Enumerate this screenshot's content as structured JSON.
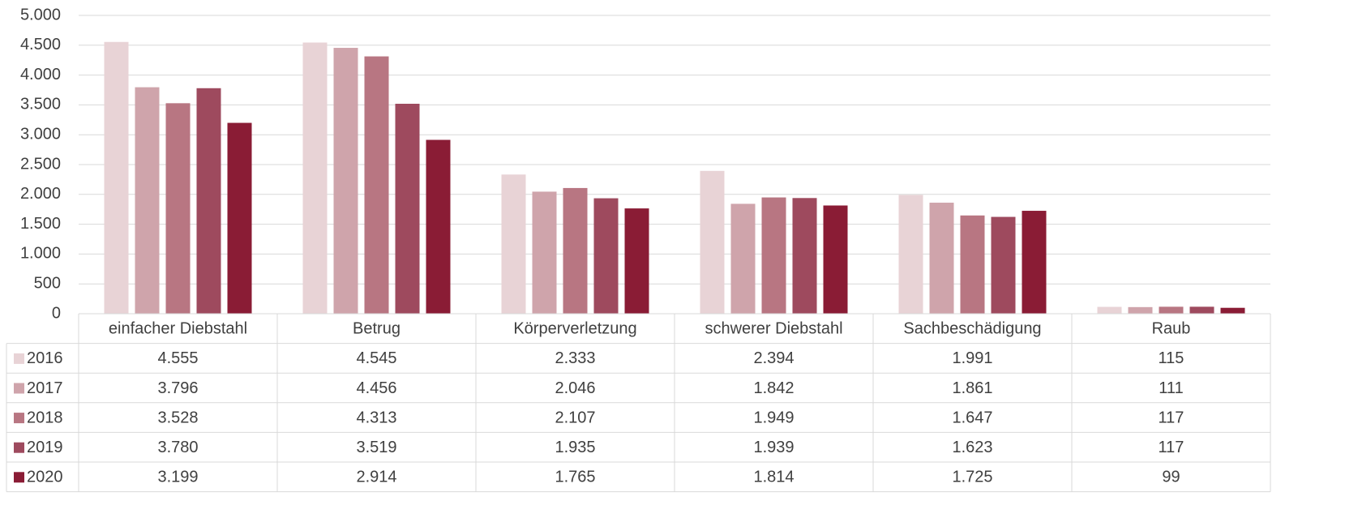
{
  "chart_data": {
    "type": "bar",
    "categories": [
      "einfacher Diebstahl",
      "Betrug",
      "Körperverletzung",
      "schwerer Diebstahl",
      "Sachbeschädigung",
      "Raub"
    ],
    "series": [
      {
        "name": "2016",
        "color": "#e8d3d6",
        "values": [
          4555,
          4545,
          2333,
          2394,
          1991,
          115
        ],
        "value_labels": [
          "4.555",
          "4.545",
          "2.333",
          "2.394",
          "1.991",
          "115"
        ]
      },
      {
        "name": "2017",
        "color": "#cfa4ab",
        "values": [
          3796,
          4456,
          2046,
          1842,
          1861,
          111
        ],
        "value_labels": [
          "3.796",
          "4.456",
          "2.046",
          "1.842",
          "1.861",
          "111"
        ]
      },
      {
        "name": "2018",
        "color": "#b87682",
        "values": [
          3528,
          4313,
          2107,
          1949,
          1647,
          117
        ],
        "value_labels": [
          "3.528",
          "4.313",
          "2.107",
          "1.949",
          "1.647",
          "117"
        ]
      },
      {
        "name": "2019",
        "color": "#9e4a5e",
        "values": [
          3780,
          3519,
          1935,
          1939,
          1623,
          117
        ],
        "value_labels": [
          "3.780",
          "3.519",
          "1.935",
          "1.939",
          "1.623",
          "117"
        ]
      },
      {
        "name": "2020",
        "color": "#8a1c35",
        "values": [
          3199,
          2914,
          1765,
          1814,
          1725,
          99
        ],
        "value_labels": [
          "3.199",
          "2.914",
          "1.765",
          "1.814",
          "1.725",
          "99"
        ]
      }
    ],
    "ylim": [
      0,
      5000
    ],
    "yticks": [
      0,
      {
        "value": 500,
        "label": "500"
      },
      {
        "value": 1000,
        "label": "1.000"
      },
      {
        "value": 1500,
        "label": "1.500"
      },
      {
        "value": 2000,
        "label": "2.000"
      },
      {
        "value": 2500,
        "label": "2.500"
      },
      {
        "value": 3000,
        "label": "3.000"
      },
      {
        "value": 3500,
        "label": "3.500"
      },
      {
        "value": 4000,
        "label": "4.000"
      },
      {
        "value": 4500,
        "label": "4.500"
      },
      {
        "value": 5000,
        "label": "5.000"
      }
    ],
    "grid": true
  }
}
